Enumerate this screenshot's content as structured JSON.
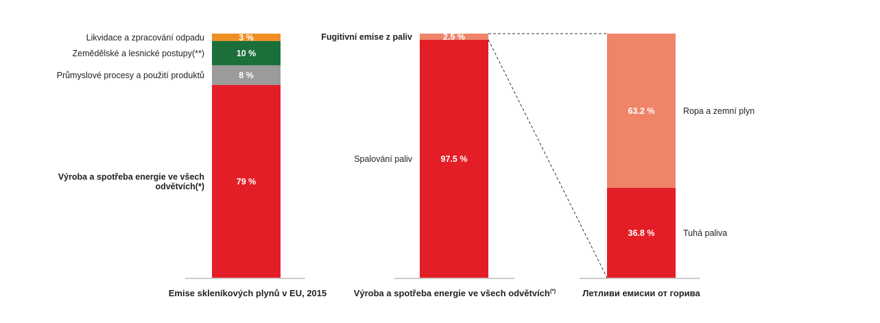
{
  "chart_data": [
    {
      "type": "bar",
      "stacked": true,
      "xlabel": "Emise skleníkových plynů v EU, 2015",
      "segments": [
        {
          "name": "Výroba a spotřeba energie ve všech odvětvích(*)",
          "value": 79,
          "label": "79 %",
          "color": "#e41e26",
          "label_bold": true
        },
        {
          "name": "Průmyslové procesy a použití produktů",
          "value": 8,
          "label": "8 %",
          "color": "#9b9b9b",
          "label_bold": false
        },
        {
          "name": "Zemědělské a lesnické postupy(**)",
          "value": 10,
          "label": "10 %",
          "color": "#1b6f3a",
          "label_bold": false
        },
        {
          "name": "Likvidace a zpracování odpadu",
          "value": 3,
          "label": "3 %",
          "color": "#ef8f22",
          "label_bold": false
        }
      ]
    },
    {
      "type": "bar",
      "stacked": true,
      "xlabel": "Výroba a spotřeba energie ve všech odvětvích",
      "xlabel_sup": "(*)",
      "segments": [
        {
          "name": "Spalování paliv",
          "value": 97.5,
          "label": "97.5 %",
          "color": "#e41e26",
          "label_bold": false
        },
        {
          "name": "Fugitivní emise z paliv",
          "value": 2.5,
          "label": "2.5 %",
          "color": "#ef8469",
          "label_bold": true
        }
      ]
    },
    {
      "type": "bar",
      "stacked": true,
      "xlabel": "Летливи емисии от горива",
      "segments": [
        {
          "name": "Tuhá paliva",
          "value": 36.8,
          "label": "36.8 %",
          "color": "#e41e26",
          "label_bold": false
        },
        {
          "name": "Ropa a zemní plyn",
          "value": 63.2,
          "label": "63.2 %",
          "color": "#ef8469",
          "label_bold": false
        }
      ]
    }
  ]
}
